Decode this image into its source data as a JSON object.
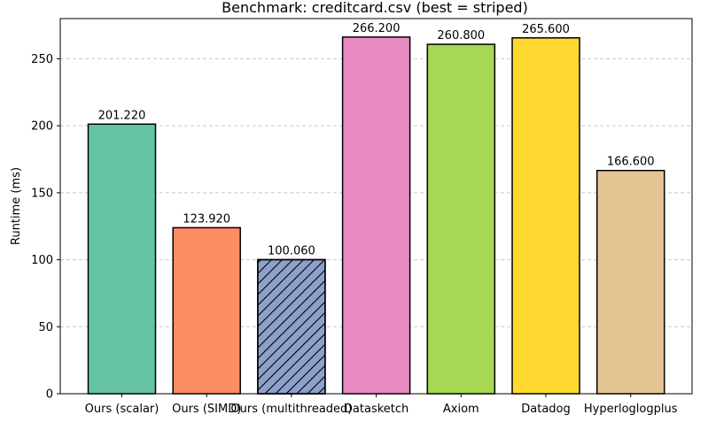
{
  "chart_data": {
    "type": "bar",
    "title": "Benchmark: creditcard.csv (best = striped)",
    "xlabel": "",
    "ylabel": "Runtime (ms)",
    "ylim": [
      0,
      280
    ],
    "yticks": [
      0,
      50,
      100,
      150,
      200,
      250
    ],
    "grid": "y-dashed",
    "categories": [
      "Ours (scalar)",
      "Ours (SIMD)",
      "Ours (multithreaded)",
      "Datasketch",
      "Axiom",
      "Datadog",
      "Hyperloglogplus"
    ],
    "values": [
      201.22,
      123.92,
      100.06,
      266.2,
      260.8,
      265.6,
      166.6
    ],
    "value_labels": [
      "201.220",
      "123.920",
      "100.060",
      "266.200",
      "260.800",
      "265.600",
      "166.600"
    ],
    "colors": [
      "#66c2a5",
      "#fc8d62",
      "#8da0cb",
      "#e78ac3",
      "#a6d854",
      "#ffd92f",
      "#e5c494"
    ],
    "best_index": 2,
    "best_pattern": "striped"
  }
}
